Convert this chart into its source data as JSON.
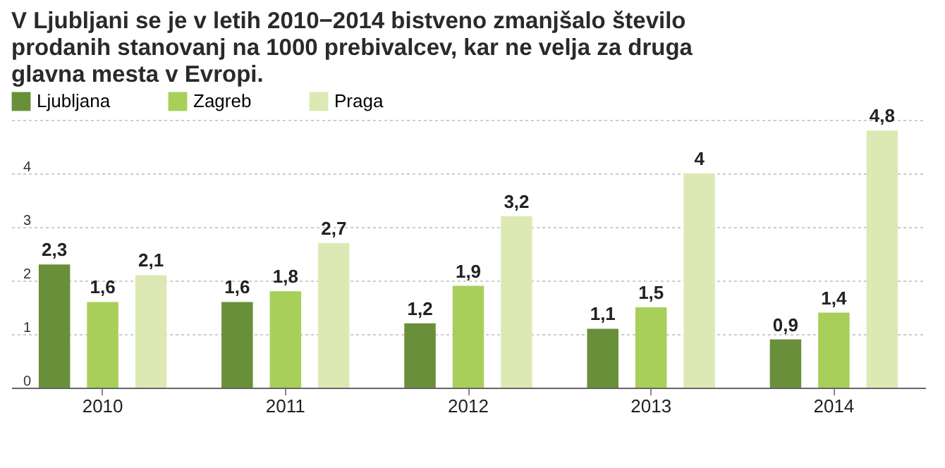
{
  "chart_data": {
    "type": "bar",
    "title": "V Ljubljani se je v letih 2010−2014 bistveno zmanjšalo število prodanih stanovanj na 1000 prebivalcev, kar ne velja za druga glavna mesta v Evropi.",
    "categories": [
      "2010",
      "2011",
      "2012",
      "2013",
      "2014"
    ],
    "series": [
      {
        "name": "Ljubljana",
        "color": "#6a8f3a",
        "values": [
          2.3,
          1.6,
          1.2,
          1.1,
          0.9
        ],
        "value_labels": [
          "2,3",
          "1,6",
          "1,2",
          "1,1",
          "0,9"
        ]
      },
      {
        "name": "Zagreb",
        "color": "#a8cf5a",
        "values": [
          1.6,
          1.8,
          1.9,
          1.5,
          1.4
        ],
        "value_labels": [
          "1,6",
          "1,8",
          "1,9",
          "1,5",
          "1,4"
        ]
      },
      {
        "name": "Praga",
        "color": "#dde9b5",
        "values": [
          2.1,
          2.7,
          3.2,
          4,
          4.8
        ],
        "value_labels": [
          "2,1",
          "2,7",
          "3,2",
          "4",
          "4,8"
        ]
      }
    ],
    "ylim": [
      0,
      5
    ],
    "yticks": [
      0,
      1,
      2,
      3,
      4,
      {
        "value": 5,
        "label": null
      }
    ],
    "grid": "y",
    "legend": "top"
  }
}
